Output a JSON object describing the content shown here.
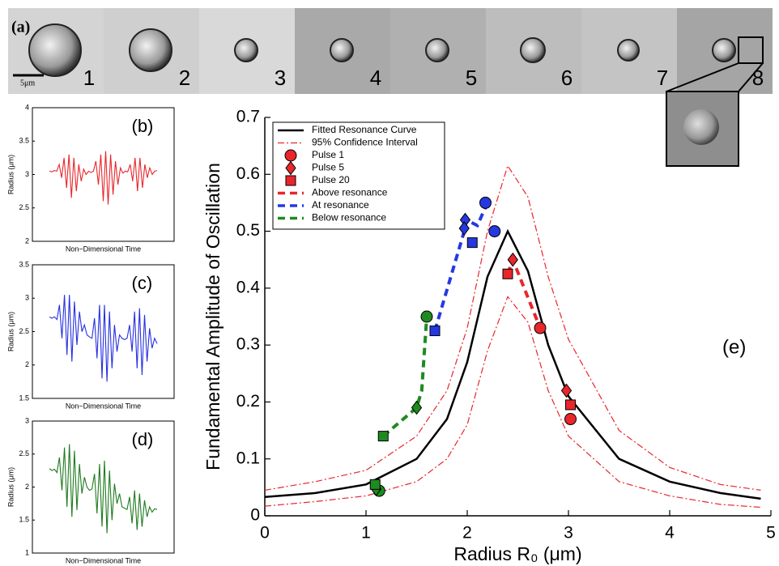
{
  "panel_a": {
    "label": "(a)",
    "frames": [
      "1",
      "2",
      "3",
      "4",
      "5",
      "6",
      "7",
      "8"
    ],
    "scale_bar": "5μm"
  },
  "chart_data": [
    {
      "type": "line",
      "annotation": "(b)",
      "ylabel": "Radius (μm)",
      "xlabel": "Non−Dimensional Time",
      "color": "#e8262b",
      "ylim": [
        2,
        4
      ],
      "yticks": [
        2,
        2.5,
        3,
        3.5,
        4
      ],
      "values": [
        3.05,
        3.04,
        3.06,
        3.05,
        3.15,
        2.95,
        3.25,
        2.8,
        3.3,
        2.65,
        3.25,
        2.75,
        3.15,
        2.9,
        3.08,
        3.0,
        3.05,
        3.03,
        3.05,
        3.2,
        2.85,
        3.3,
        2.6,
        3.35,
        2.55,
        3.3,
        2.7,
        3.2,
        2.85,
        3.1,
        3.02,
        3.05,
        3.04,
        3.15,
        2.9,
        3.25,
        2.75,
        3.25,
        2.8,
        3.15,
        2.95,
        3.1,
        3.0,
        3.05,
        3.06
      ]
    },
    {
      "type": "line",
      "annotation": "(c)",
      "ylabel": "Radius (μm)",
      "xlabel": "Non−Dimensional Time",
      "color": "#2630e0",
      "ylim": [
        1.5,
        3.5
      ],
      "yticks": [
        1.5,
        2,
        2.5,
        3,
        3.5
      ],
      "values": [
        2.72,
        2.7,
        2.72,
        2.68,
        2.9,
        2.4,
        3.05,
        2.15,
        3.05,
        2.05,
        2.95,
        2.3,
        2.8,
        2.5,
        2.6,
        2.45,
        2.42,
        2.4,
        2.7,
        2.1,
        2.9,
        1.8,
        2.9,
        1.75,
        2.8,
        1.95,
        2.6,
        2.2,
        2.45,
        2.4,
        2.38,
        2.4,
        2.6,
        2.2,
        2.8,
        1.95,
        2.85,
        1.85,
        2.75,
        2.05,
        2.55,
        2.25,
        2.4,
        2.32
      ]
    },
    {
      "type": "line",
      "annotation": "(d)",
      "ylabel": "Radius (μm)",
      "xlabel": "Non−Dimensional Time",
      "color": "#1f7a1f",
      "ylim": [
        1,
        3
      ],
      "yticks": [
        1,
        1.5,
        2,
        2.5,
        3
      ],
      "values": [
        2.28,
        2.25,
        2.27,
        2.22,
        2.45,
        1.95,
        2.6,
        1.7,
        2.65,
        1.55,
        2.55,
        1.65,
        2.35,
        1.9,
        2.15,
        2.0,
        1.95,
        1.97,
        2.2,
        1.6,
        2.35,
        1.4,
        2.4,
        1.3,
        2.25,
        1.5,
        2.05,
        1.75,
        1.9,
        1.7,
        1.68,
        1.66,
        1.85,
        1.45,
        1.95,
        1.35,
        1.9,
        1.4,
        1.8,
        1.55,
        1.7,
        1.62,
        1.67,
        1.66
      ]
    },
    {
      "type": "scatter",
      "annotation": "(e)",
      "ylabel": "Fundamental Amplitude of Oscillation",
      "xlabel": "Radius R₀ (μm)",
      "xlim": [
        0,
        5
      ],
      "xticks": [
        0,
        1,
        2,
        3,
        4,
        5
      ],
      "ylim": [
        0,
        0.7
      ],
      "yticks": [
        0,
        0.1,
        0.2,
        0.3,
        0.4,
        0.5,
        0.6,
        0.7
      ],
      "legend": "top-left",
      "series": [
        {
          "name": "Fitted Resonance Curve",
          "kind": "line",
          "dash": "solid",
          "color": "#000000",
          "x": [
            0,
            0.5,
            1,
            1.5,
            1.8,
            2,
            2.2,
            2.4,
            2.6,
            2.8,
            3,
            3.5,
            4,
            4.5,
            4.9
          ],
          "values": [
            0.033,
            0.04,
            0.055,
            0.1,
            0.17,
            0.27,
            0.42,
            0.5,
            0.43,
            0.3,
            0.21,
            0.1,
            0.06,
            0.04,
            0.03
          ]
        },
        {
          "name": "95% Confidence Interval",
          "kind": "line",
          "dash": "dashdot",
          "color": "#e8262b",
          "x": [
            0,
            0.5,
            1,
            1.5,
            1.8,
            2,
            2.2,
            2.4,
            2.6,
            2.8,
            3,
            3.5,
            4,
            4.5,
            4.9
          ],
          "values": [
            0.045,
            0.06,
            0.08,
            0.14,
            0.22,
            0.33,
            0.5,
            0.615,
            0.56,
            0.42,
            0.31,
            0.15,
            0.085,
            0.055,
            0.045
          ],
          "lower": [
            0.017,
            0.025,
            0.035,
            0.06,
            0.1,
            0.16,
            0.29,
            0.385,
            0.34,
            0.22,
            0.14,
            0.06,
            0.035,
            0.02,
            0.015
          ]
        },
        {
          "name": "Pulse 1",
          "kind": "marker",
          "marker": "circle",
          "color": "#e8262b",
          "x": [
            1.13,
            1.6,
            2.18,
            2.27,
            2.72,
            3.02
          ],
          "values": [
            0.044,
            0.35,
            0.55,
            0.5,
            0.33,
            0.17
          ],
          "colors": [
            "#1f8a1f",
            "#1f8a1f",
            "#2638e0",
            "#2638e0",
            "#e8262b",
            "#e8262b"
          ]
        },
        {
          "name": "Pulse 5",
          "kind": "marker",
          "marker": "diamond",
          "color": "#e8262b",
          "x": [
            1.1,
            1.5,
            1.98,
            1.97,
            2.45,
            2.98
          ],
          "values": [
            0.047,
            0.19,
            0.52,
            0.505,
            0.45,
            0.22
          ],
          "colors": [
            "#1f8a1f",
            "#1f8a1f",
            "#2638e0",
            "#2638e0",
            "#e8262b",
            "#e8262b"
          ]
        },
        {
          "name": "Pulse 20",
          "kind": "marker",
          "marker": "square",
          "color": "#e8262b",
          "x": [
            1.09,
            1.17,
            1.68,
            2.05,
            2.4,
            3.02
          ],
          "values": [
            0.055,
            0.14,
            0.325,
            0.48,
            0.425,
            0.195
          ],
          "colors": [
            "#1f8a1f",
            "#1f8a1f",
            "#2638e0",
            "#2638e0",
            "#e8262b",
            "#e8262b"
          ]
        },
        {
          "name": "Above resonance",
          "kind": "line",
          "dash": "dashed",
          "color": "#e8262b",
          "x": [
            2.4,
            2.45,
            2.72
          ],
          "values": [
            0.425,
            0.45,
            0.33
          ]
        },
        {
          "name": "At resonance",
          "kind": "line",
          "dash": "dashed",
          "color": "#2638e0",
          "x": [
            1.68,
            1.97,
            1.99,
            2.1,
            2.2
          ],
          "values": [
            0.325,
            0.5,
            0.52,
            0.51,
            0.55
          ]
        },
        {
          "name": "Below resonance",
          "kind": "line",
          "dash": "dashed",
          "color": "#1f8a1f",
          "x": [
            1.17,
            1.5,
            1.55,
            1.6
          ],
          "values": [
            0.14,
            0.19,
            0.22,
            0.35
          ]
        }
      ]
    }
  ]
}
